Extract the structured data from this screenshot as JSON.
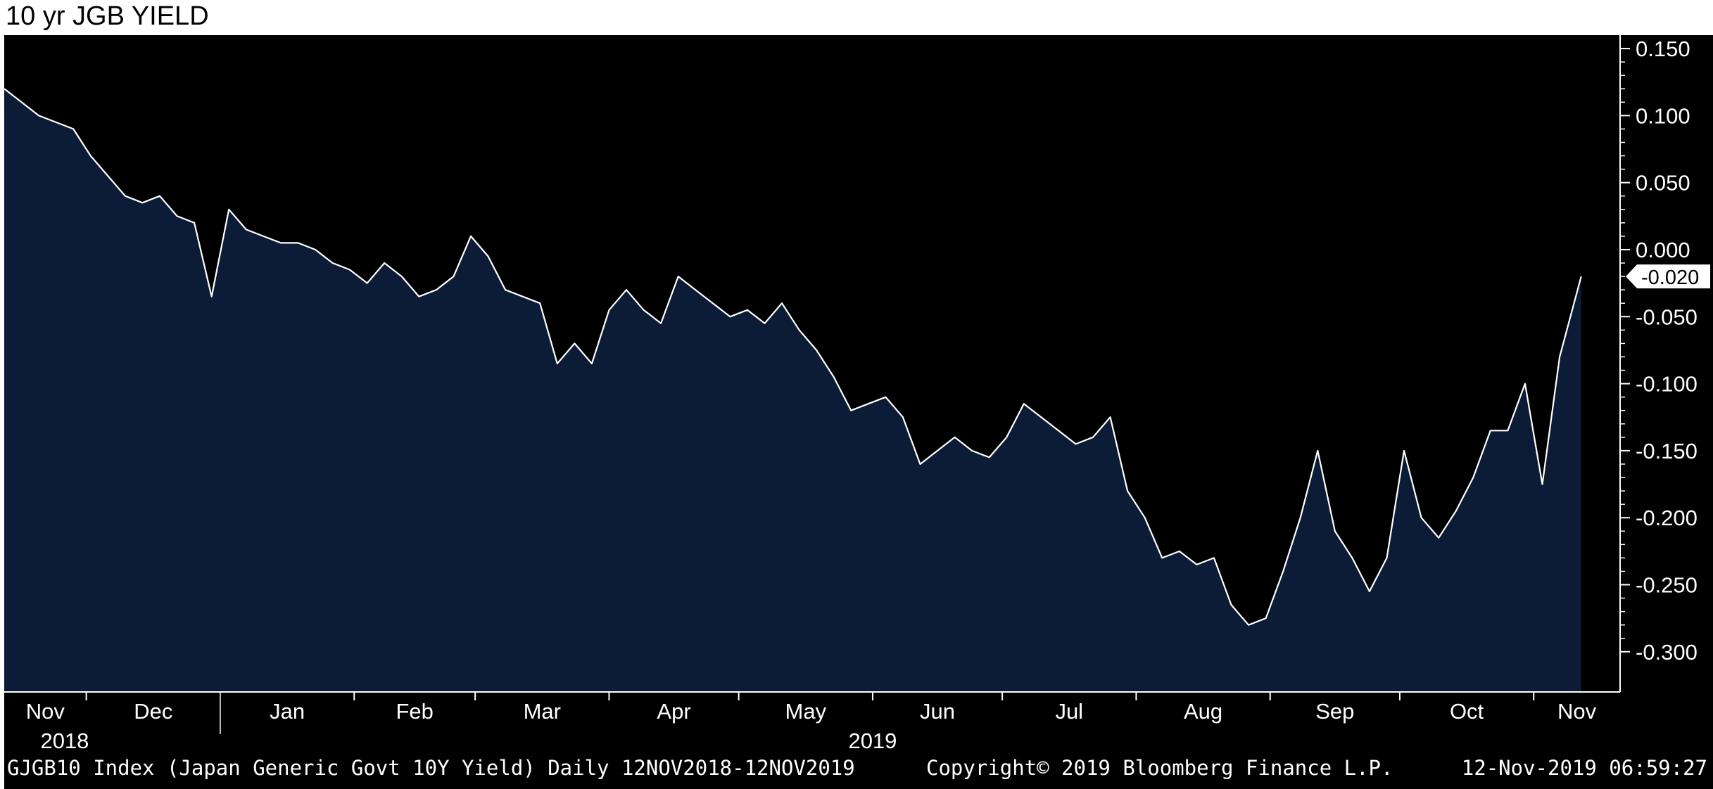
{
  "chart_data": {
    "type": "area",
    "title": "10 yr JGB YIELD",
    "ylim": [
      -0.33,
      0.16
    ],
    "y_ticks": [
      0.15,
      0.1,
      0.05,
      0.0,
      -0.05,
      -0.1,
      -0.15,
      -0.2,
      -0.25,
      -0.3
    ],
    "y_tick_labels": [
      "0.150",
      "0.100",
      "0.050",
      "0.000",
      "-0.050",
      "-0.100",
      "-0.150",
      "-0.200",
      "-0.250",
      "-0.300"
    ],
    "x_month_labels": [
      "Nov",
      "Dec",
      "Jan",
      "Feb",
      "Mar",
      "Apr",
      "May",
      "Jun",
      "Jul",
      "Aug",
      "Sep",
      "Oct",
      "Nov"
    ],
    "x_year_labels": [
      "2018",
      "2019"
    ],
    "last_value_label": "-0.020",
    "grid": false,
    "colors": {
      "background": "#000000",
      "fill": "#0c1c36",
      "line": "#ffffff"
    },
    "series": [
      {
        "x": [
          "2018-11-12",
          "2018-11-16",
          "2018-11-20",
          "2018-11-24",
          "2018-11-28",
          "2018-12-02",
          "2018-12-06",
          "2018-12-10",
          "2018-12-14",
          "2018-12-18",
          "2018-12-22",
          "2018-12-26",
          "2018-12-30",
          "2019-01-03",
          "2019-01-07",
          "2019-01-11",
          "2019-01-15",
          "2019-01-19",
          "2019-01-23",
          "2019-01-27",
          "2019-01-31",
          "2019-02-04",
          "2019-02-08",
          "2019-02-12",
          "2019-02-16",
          "2019-02-20",
          "2019-02-24",
          "2019-02-28",
          "2019-03-04",
          "2019-03-08",
          "2019-03-12",
          "2019-03-16",
          "2019-03-20",
          "2019-03-24",
          "2019-03-28",
          "2019-04-01",
          "2019-04-05",
          "2019-04-09",
          "2019-04-13",
          "2019-04-17",
          "2019-04-21",
          "2019-04-25",
          "2019-04-29",
          "2019-05-03",
          "2019-05-07",
          "2019-05-11",
          "2019-05-15",
          "2019-05-19",
          "2019-05-23",
          "2019-05-27",
          "2019-05-31",
          "2019-06-04",
          "2019-06-08",
          "2019-06-12",
          "2019-06-16",
          "2019-06-20",
          "2019-06-24",
          "2019-06-28",
          "2019-07-02",
          "2019-07-06",
          "2019-07-10",
          "2019-07-14",
          "2019-07-18",
          "2019-07-22",
          "2019-07-26",
          "2019-07-30",
          "2019-08-03",
          "2019-08-07",
          "2019-08-11",
          "2019-08-15",
          "2019-08-19",
          "2019-08-23",
          "2019-08-27",
          "2019-08-31",
          "2019-09-04",
          "2019-09-08",
          "2019-09-12",
          "2019-09-16",
          "2019-09-20",
          "2019-09-24",
          "2019-09-28",
          "2019-10-02",
          "2019-10-06",
          "2019-10-10",
          "2019-10-14",
          "2019-10-18",
          "2019-10-22",
          "2019-10-26",
          "2019-10-30",
          "2019-11-03",
          "2019-11-07",
          "2019-11-12"
        ],
        "values": [
          0.12,
          0.11,
          0.1,
          0.095,
          0.09,
          0.07,
          0.055,
          0.04,
          0.035,
          0.04,
          0.025,
          0.02,
          -0.035,
          0.03,
          0.015,
          0.01,
          0.005,
          0.005,
          0.0,
          -0.01,
          -0.015,
          -0.025,
          -0.01,
          -0.02,
          -0.035,
          -0.03,
          -0.02,
          0.01,
          -0.005,
          -0.03,
          -0.035,
          -0.04,
          -0.085,
          -0.07,
          -0.085,
          -0.045,
          -0.03,
          -0.045,
          -0.055,
          -0.02,
          -0.03,
          -0.04,
          -0.05,
          -0.045,
          -0.055,
          -0.04,
          -0.06,
          -0.075,
          -0.095,
          -0.12,
          -0.115,
          -0.11,
          -0.125,
          -0.16,
          -0.15,
          -0.14,
          -0.15,
          -0.155,
          -0.14,
          -0.115,
          -0.125,
          -0.135,
          -0.145,
          -0.14,
          -0.125,
          -0.18,
          -0.2,
          -0.23,
          -0.225,
          -0.235,
          -0.23,
          -0.265,
          -0.28,
          -0.275,
          -0.24,
          -0.2,
          -0.15,
          -0.21,
          -0.23,
          -0.255,
          -0.23,
          -0.15,
          -0.2,
          -0.215,
          -0.195,
          -0.17,
          -0.135,
          -0.135,
          -0.1,
          -0.175,
          -0.08,
          -0.02
        ]
      }
    ]
  },
  "footer": {
    "left": "GJGB10 Index (Japan Generic Govt 10Y Yield)  Daily 12NOV2018-12NOV2019",
    "middle": "Copyright© 2019 Bloomberg Finance L.P.",
    "right": "12-Nov-2019 06:59:27"
  }
}
